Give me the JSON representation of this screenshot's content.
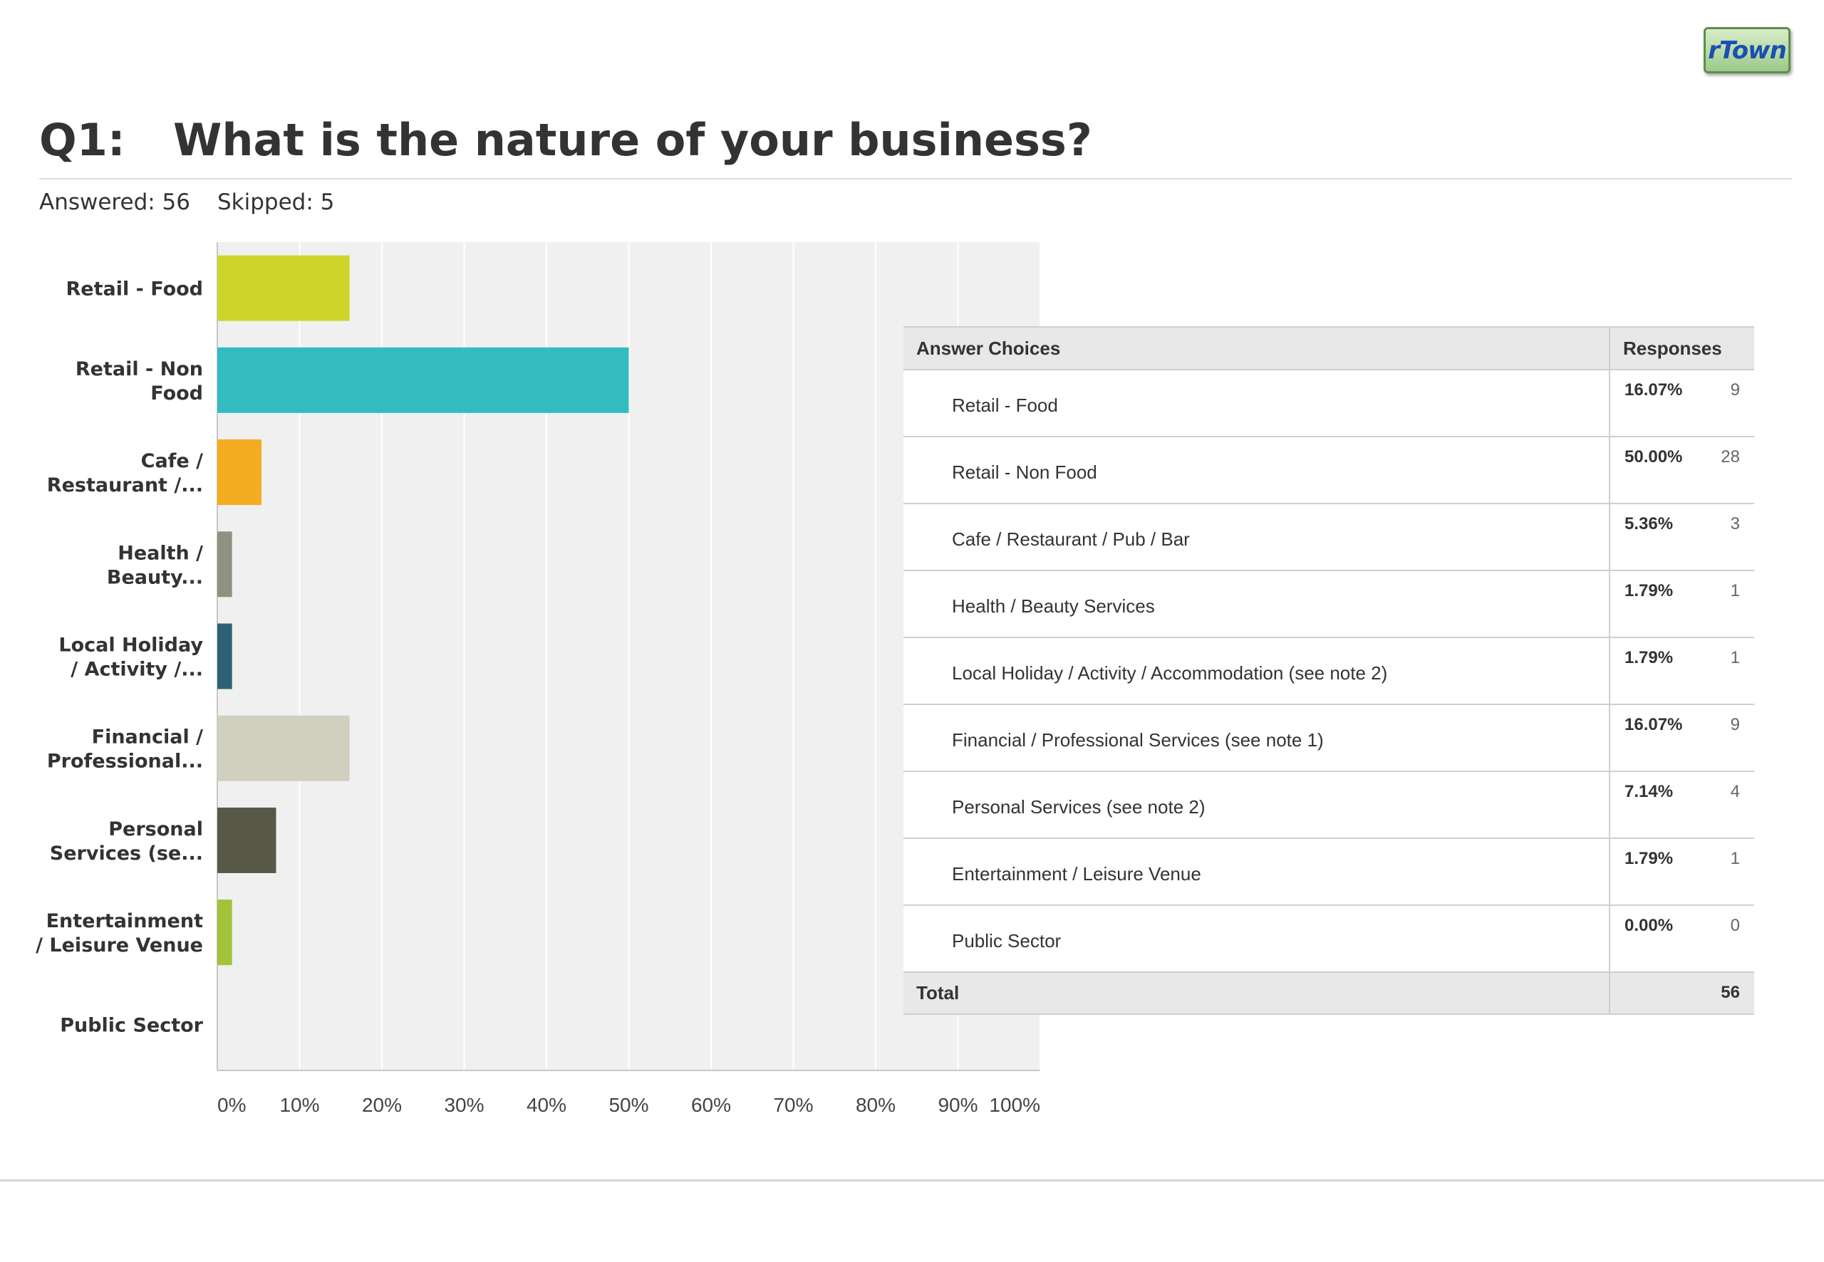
{
  "logo": {
    "text": "rTown"
  },
  "question": {
    "number": "Q1:",
    "text": "What is the nature of your business?"
  },
  "stats": {
    "answered": "Answered: 56",
    "skipped": "Skipped: 5"
  },
  "chart_data": {
    "type": "bar",
    "orientation": "horizontal",
    "categories": [
      "Retail - Food",
      "Retail - Non Food",
      "Cafe / Restaurant /...",
      "Health / Beauty...",
      "Local Holiday / Activity /...",
      "Financial / Professional...",
      "Personal Services (se...",
      "Entertainment / Leisure Venue",
      "Public Sector"
    ],
    "category_lines": [
      [
        "Retail - Food"
      ],
      [
        "Retail - Non",
        "Food"
      ],
      [
        "Cafe /",
        "Restaurant /..."
      ],
      [
        "Health /",
        "Beauty..."
      ],
      [
        "Local Holiday",
        "/ Activity /..."
      ],
      [
        "Financial /",
        "Professional..."
      ],
      [
        "Personal",
        "Services (se..."
      ],
      [
        "Entertainment",
        "/ Leisure Venue"
      ],
      [
        "Public Sector"
      ]
    ],
    "values": [
      16.07,
      50.0,
      5.36,
      1.79,
      1.79,
      16.07,
      7.14,
      1.79,
      0.0
    ],
    "colors": [
      "#cdd52a",
      "#33bcbf",
      "#f4ab1f",
      "#8f9281",
      "#2d6176",
      "#d0cfc0",
      "#585848",
      "#a2c33a",
      "#cccccc"
    ],
    "xlim": [
      0,
      100
    ],
    "xticks": [
      "0%",
      "10%",
      "20%",
      "30%",
      "40%",
      "50%",
      "60%",
      "70%",
      "80%",
      "90%",
      "100%"
    ],
    "grid": true
  },
  "table": {
    "headers": {
      "choices": "Answer Choices",
      "responses": "Responses"
    },
    "rows": [
      {
        "choice": "Retail - Food",
        "pct": "16.07%",
        "count": "9"
      },
      {
        "choice": "Retail - Non Food",
        "pct": "50.00%",
        "count": "28"
      },
      {
        "choice": "Cafe / Restaurant / Pub / Bar",
        "pct": "5.36%",
        "count": "3"
      },
      {
        "choice": "Health / Beauty Services",
        "pct": "1.79%",
        "count": "1"
      },
      {
        "choice": "Local Holiday / Activity / Accommodation (see note 2)",
        "pct": "1.79%",
        "count": "1"
      },
      {
        "choice": "Financial / Professional Services (see note 1)",
        "pct": "16.07%",
        "count": "9"
      },
      {
        "choice": "Personal Services (see note 2)",
        "pct": "7.14%",
        "count": "4"
      },
      {
        "choice": "Entertainment / Leisure Venue",
        "pct": "1.79%",
        "count": "1"
      },
      {
        "choice": "Public Sector",
        "pct": "0.00%",
        "count": "0"
      }
    ],
    "total": {
      "label": "Total",
      "count": "56"
    }
  }
}
